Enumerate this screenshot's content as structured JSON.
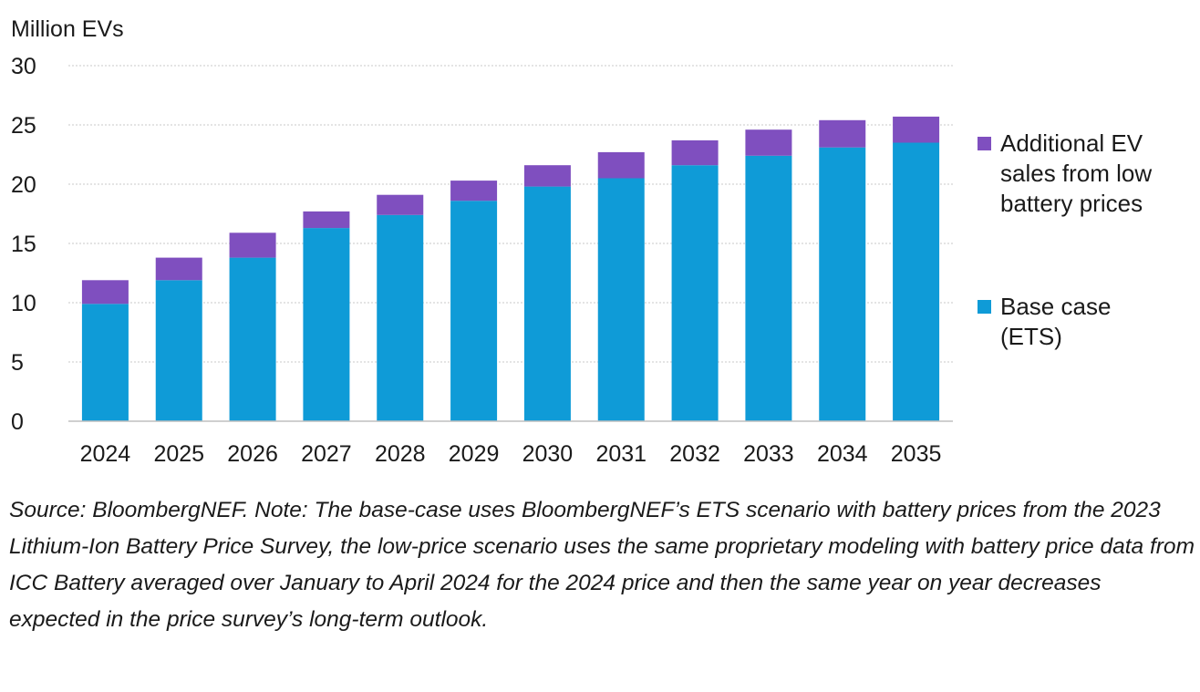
{
  "chart_data": {
    "type": "bar",
    "stacked": true,
    "ylabel": "Million EVs",
    "ylim": [
      0,
      30
    ],
    "yticks": [
      0,
      5,
      10,
      15,
      20,
      25,
      30
    ],
    "grid": true,
    "legend_position": "right",
    "categories": [
      "2024",
      "2025",
      "2026",
      "2027",
      "2028",
      "2029",
      "2030",
      "2031",
      "2032",
      "2033",
      "2034",
      "2035"
    ],
    "series": [
      {
        "name": "Base case (ETS)",
        "color": "#0f9bd7",
        "values": [
          9.9,
          11.9,
          13.8,
          16.3,
          17.4,
          18.6,
          19.8,
          20.5,
          21.6,
          22.4,
          23.1,
          23.5
        ]
      },
      {
        "name": "Additional EV sales from low battery prices",
        "color": "#7f4fbf",
        "values": [
          2.0,
          1.9,
          2.1,
          1.4,
          1.7,
          1.7,
          1.8,
          2.2,
          2.1,
          2.2,
          2.3,
          2.2
        ]
      }
    ]
  },
  "legend": {
    "additional": "Additional EV sales from low battery prices",
    "base": "Base case (ETS)"
  },
  "note": "Source: BloombergNEF. Note: The base-case uses BloombergNEF’s ETS scenario with battery prices from the 2023 Lithium-Ion Battery Price Survey, the low-price scenario uses the same proprietary modeling with battery price data from ICC Battery averaged over January to April 2024 for the 2024 price and then the same year on year decreases expected in the price survey’s long-term outlook."
}
